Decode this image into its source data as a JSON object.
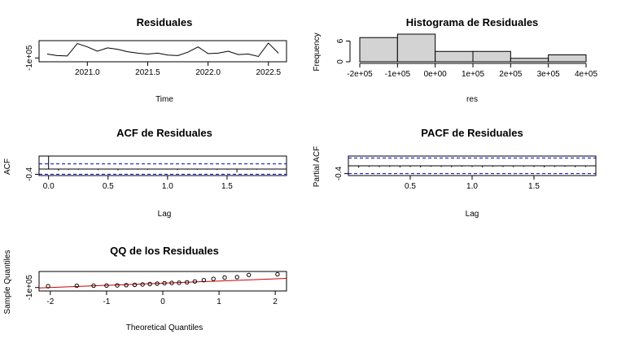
{
  "colors": {
    "qq_line": "#cc0000",
    "ci_line": "#0000cc",
    "hist_fill": "#d3d3d3",
    "stroke": "#000000"
  },
  "chart_data": [
    {
      "id": "residuals",
      "type": "line",
      "title": "Residuales",
      "xlabel": "Time",
      "ylabel": "",
      "xlim": [
        2020.6,
        2022.65
      ],
      "ylim": [
        -180000,
        260000
      ],
      "xticks": [
        2021.0,
        2021.5,
        2022.0,
        2022.5
      ],
      "xtick_labels": [
        "2021.0",
        "2021.5",
        "2022.0",
        "2022.5"
      ],
      "yticks": [
        -100000
      ],
      "ytick_labels": [
        "-1e+05"
      ],
      "x": [
        2020.667,
        2020.75,
        2020.833,
        2020.917,
        2021.0,
        2021.083,
        2021.167,
        2021.25,
        2021.333,
        2021.417,
        2021.5,
        2021.583,
        2021.667,
        2021.75,
        2021.833,
        2021.917,
        2022.0,
        2022.083,
        2022.167,
        2022.25,
        2022.333,
        2022.417,
        2022.5,
        2022.583
      ],
      "values": [
        -20000,
        -50000,
        -60000,
        200000,
        130000,
        40000,
        110000,
        80000,
        30000,
        0,
        -20000,
        0,
        -40000,
        -50000,
        20000,
        130000,
        -10000,
        0,
        40000,
        -30000,
        -20000,
        -70000,
        210000,
        0
      ]
    },
    {
      "id": "histogram",
      "type": "bar",
      "title": "Histograma de Residuales",
      "xlabel": "res",
      "ylabel": "Frequency",
      "xlim": [
        -200000,
        400000
      ],
      "ylim": [
        0,
        8
      ],
      "xticks": [
        -200000,
        -100000,
        0,
        100000,
        200000,
        300000,
        400000
      ],
      "xtick_labels": [
        "-2e+05",
        "-1e+05",
        "0e+00",
        "1e+05",
        "2e+05",
        "3e+05",
        "4e+05"
      ],
      "yticks": [
        0,
        6
      ],
      "ytick_labels": [
        "0",
        "6"
      ],
      "bin_edges": [
        -200000,
        -100000,
        0,
        100000,
        200000,
        300000,
        400000
      ],
      "counts": [
        7,
        8,
        3,
        3,
        1,
        2
      ]
    },
    {
      "id": "acf",
      "type": "bar",
      "title": "ACF de Residuales",
      "xlabel": "Lag",
      "ylabel": "ACF",
      "xlim": [
        -0.08,
        2.0
      ],
      "ylim": [
        -0.5,
        1.0
      ],
      "xticks": [
        0.0,
        0.5,
        1.0,
        1.5
      ],
      "xtick_labels": [
        "0.0",
        "0.5",
        "1.0",
        "1.5"
      ],
      "yticks": [
        -0.4
      ],
      "ytick_labels": [
        "-0.4"
      ],
      "ci": 0.4,
      "lags": [
        0,
        0.0833,
        0.1667,
        0.25,
        0.3333,
        0.4167,
        0.5,
        0.5833,
        0.6667,
        0.75,
        0.8333,
        0.9167,
        1.0,
        1.0833,
        1.1667,
        1.25,
        1.3333,
        1.4167,
        1.5,
        1.5833,
        1.6667,
        1.75,
        1.8333,
        1.9167
      ],
      "values": [
        1.0,
        -0.12,
        -0.05,
        -0.06,
        -0.03,
        -0.08,
        -0.02,
        -0.1,
        -0.04,
        -0.05,
        -0.06,
        -0.03,
        -0.04,
        -0.08,
        -0.05,
        -0.06,
        -0.04,
        -0.07,
        -0.05,
        -0.25,
        -0.04,
        -0.05,
        -0.04,
        -0.03
      ]
    },
    {
      "id": "pacf",
      "type": "bar",
      "title": "PACF de Residuales",
      "xlabel": "Lag",
      "ylabel": "Partial ACF",
      "xlim": [
        0.0,
        2.0
      ],
      "ylim": [
        -0.5,
        0.5
      ],
      "xticks": [
        0.5,
        1.0,
        1.5
      ],
      "xtick_labels": [
        "0.5",
        "1.0",
        "1.5"
      ],
      "yticks": [
        -0.4
      ],
      "ytick_labels": [
        "-0.4"
      ],
      "ci": 0.4,
      "lags": [
        0.0833,
        0.1667,
        0.25,
        0.3333,
        0.4167,
        0.5,
        0.5833,
        0.6667,
        0.75,
        0.8333,
        0.9167,
        1.0,
        1.0833,
        1.1667,
        1.25,
        1.3333,
        1.4167,
        1.5,
        1.5833,
        1.6667,
        1.75,
        1.8333,
        1.9167
      ],
      "values": [
        -0.1,
        -0.06,
        -0.07,
        -0.05,
        -0.08,
        -0.06,
        -0.08,
        -0.05,
        -0.06,
        -0.07,
        -0.05,
        -0.06,
        -0.08,
        -0.05,
        -0.06,
        -0.07,
        -0.05,
        -0.06,
        -0.08,
        -0.06,
        -0.05,
        -0.07,
        -0.06
      ]
    },
    {
      "id": "qq",
      "type": "scatter",
      "title": "QQ de los Residuales",
      "xlabel": "Theoretical Quantiles",
      "ylabel": "Sample Quantiles",
      "xlim": [
        -2.2,
        2.2
      ],
      "ylim": [
        -180000,
        270000
      ],
      "xticks": [
        -2,
        -1,
        0,
        1,
        2
      ],
      "xtick_labels": [
        "-2",
        "-1",
        "0",
        "1",
        "2"
      ],
      "yticks": [
        -100000
      ],
      "ytick_labels": [
        "-1e+05"
      ],
      "x": [
        -2.04,
        -1.53,
        -1.23,
        -1.0,
        -0.81,
        -0.65,
        -0.5,
        -0.36,
        -0.23,
        -0.1,
        0.03,
        0.16,
        0.29,
        0.43,
        0.57,
        0.73,
        0.9,
        1.1,
        1.32,
        1.53,
        2.04
      ],
      "values": [
        -70000,
        -60000,
        -58000,
        -55000,
        -50000,
        -45000,
        -38000,
        -30000,
        -20000,
        -10000,
        0,
        5000,
        10000,
        20000,
        40000,
        70000,
        100000,
        130000,
        140000,
        190000,
        205000
      ],
      "reference_line": {
        "x": [
          -2.2,
          2.2
        ],
        "y": [
          -110000,
          110000
        ]
      }
    }
  ]
}
